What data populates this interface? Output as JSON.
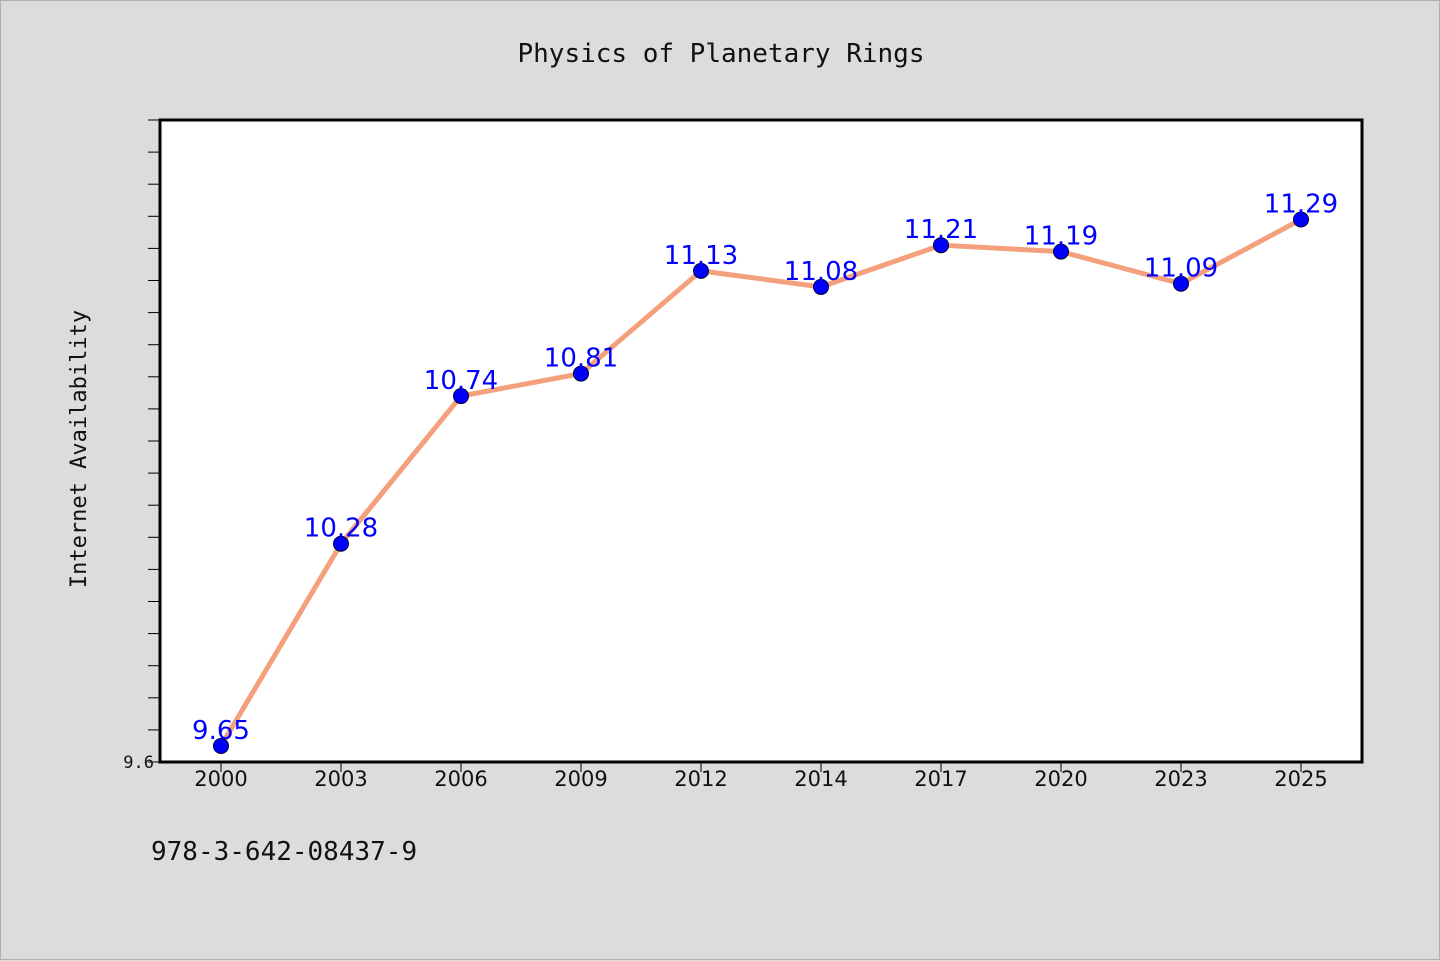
{
  "chart_data": {
    "type": "line",
    "title": "Physics of Planetary Rings",
    "xlabel": "",
    "ylabel": "Internet Availability",
    "categories": [
      "2000",
      "2003",
      "2006",
      "2009",
      "2012",
      "2014",
      "2017",
      "2020",
      "2023",
      "2025"
    ],
    "series": [
      {
        "values": [
          9.65,
          10.28,
          10.74,
          10.81,
          11.13,
          11.08,
          11.21,
          11.19,
          11.09,
          11.29
        ]
      }
    ],
    "data_labels": [
      "9.65",
      "10.28",
      "10.74",
      "10.81",
      "11.13",
      "11.08",
      "11.21",
      "11.19",
      "11.09",
      "11.29"
    ],
    "y_tick_labels": [
      "9.6"
    ],
    "ylim": [
      9.6,
      11.6
    ],
    "grid": false,
    "legend": "none",
    "colors": {
      "line": "#f4a07c",
      "marker": "#0000ff",
      "data_label": "#0000ff",
      "plot_background": "#ffffff",
      "figure_background": "#dcdcdc"
    }
  },
  "footer": {
    "isbn": "978-3-642-08437-9"
  }
}
